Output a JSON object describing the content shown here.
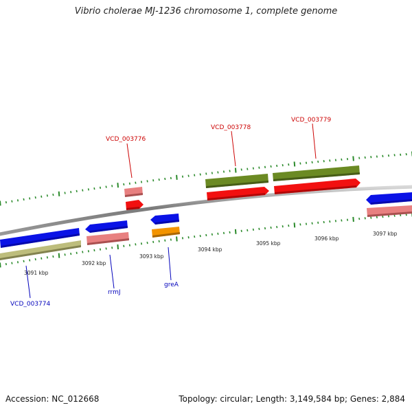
{
  "title": "Vibrio cholerae MJ-1236 chromosome 1, complete genome",
  "footer": {
    "accession": "Accession: NC_012668",
    "summary": "Topology: circular; Length: 3,149,584 bp; Genes: 2,884"
  },
  "colors": {
    "backbone": "#8a8a8a",
    "backbone_light": "#d0d0d0",
    "tick_mark": "#2a8a2a",
    "label_top": "#cc0000",
    "label_bottom": "#0000bb",
    "blue": "#0a12e6",
    "light_red": "#e88080",
    "red": "#f21010",
    "olive": "#6b8a23",
    "khaki": "#bdbd7c",
    "orange": "#f39400"
  },
  "scale": {
    "unit": "kbp",
    "tick_labels": [
      "3091 kbp",
      "3092 kbp",
      "3093 kbp",
      "3094 kbp",
      "3095 kbp",
      "3096 kbp",
      "3097 kbp"
    ]
  },
  "genes": {
    "labeled_top": [
      {
        "name": "VCD_003776",
        "color": "label_top"
      },
      {
        "name": "VCD_003778",
        "color": "label_top"
      },
      {
        "name": "VCD_003779",
        "color": "label_top"
      }
    ],
    "labeled_bottom": [
      {
        "name": "VCD_003774",
        "color": "label_bottom"
      },
      {
        "name": "rrmJ",
        "color": "label_bottom"
      },
      {
        "name": "greA",
        "color": "label_bottom"
      }
    ]
  }
}
